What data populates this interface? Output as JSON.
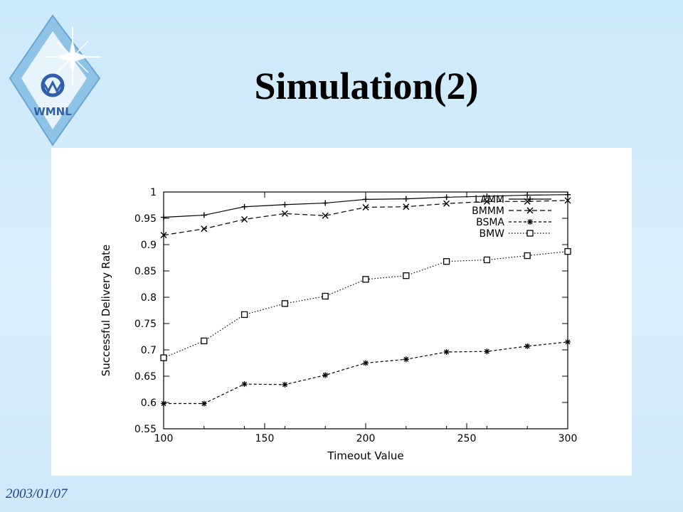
{
  "slide": {
    "title": "Simulation(2)",
    "footer_date": "2003/01/07",
    "logo_text": "WMNL"
  },
  "colors": {
    "background": "#cfe9fb",
    "panel": "#ffffff",
    "footer_text": "#1a3f8f",
    "logo_blue": "#2f5fa8"
  },
  "chart_data": {
    "type": "line",
    "xlabel": "Timeout Value",
    "ylabel": "Successful Delivery Rate",
    "xlim": [
      100,
      300
    ],
    "ylim": [
      0.55,
      1
    ],
    "xticks": [
      100,
      150,
      200,
      250,
      300
    ],
    "yticks": [
      0.55,
      0.6,
      0.65,
      0.7,
      0.75,
      0.8,
      0.85,
      0.9,
      0.95,
      1
    ],
    "grid": false,
    "legend_position": "top-right",
    "x": [
      100,
      120,
      140,
      160,
      180,
      200,
      220,
      240,
      260,
      280,
      300
    ],
    "series": [
      {
        "name": "LAMM",
        "marker": "plus",
        "values": [
          0.952,
          0.956,
          0.972,
          0.976,
          0.979,
          0.986,
          0.987,
          0.99,
          0.992,
          0.994,
          0.995
        ]
      },
      {
        "name": "BMMM",
        "marker": "cross",
        "values": [
          0.918,
          0.93,
          0.948,
          0.959,
          0.955,
          0.971,
          0.972,
          0.978,
          0.982,
          0.982,
          0.984
        ]
      },
      {
        "name": "BSMA",
        "marker": "star",
        "values": [
          0.598,
          0.598,
          0.635,
          0.634,
          0.652,
          0.675,
          0.682,
          0.696,
          0.697,
          0.707,
          0.715
        ]
      },
      {
        "name": "BMW",
        "marker": "square",
        "values": [
          0.685,
          0.717,
          0.767,
          0.788,
          0.802,
          0.834,
          0.841,
          0.868,
          0.871,
          0.879,
          0.887
        ]
      }
    ]
  }
}
